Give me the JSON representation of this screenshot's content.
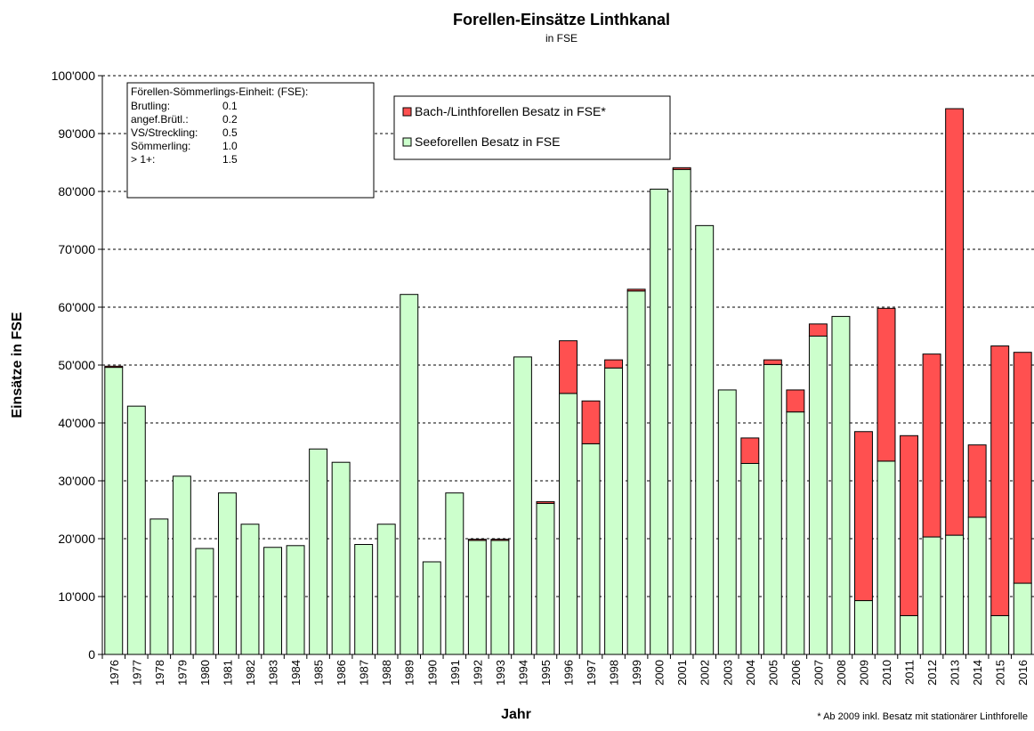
{
  "chart_data": {
    "type": "stacked-bar",
    "title": "Forellen-Einsätze Linthkanal",
    "subtitle": "in FSE",
    "y_label": "Einsätze in FSE",
    "x_label": "Jahr",
    "footnote": "* Ab 2009 inkl. Besatz mit stationärer Linthforelle",
    "categories": [
      "1976",
      "1977",
      "1978",
      "1979",
      "1980",
      "1981",
      "1982",
      "1983",
      "1984",
      "1985",
      "1986",
      "1987",
      "1988",
      "1989",
      "1990",
      "1991",
      "1992",
      "1993",
      "1994",
      "1995",
      "1996",
      "1997",
      "1998",
      "1999",
      "2000",
      "2001",
      "2002",
      "2003",
      "2004",
      "2005",
      "2006",
      "2007",
      "2008",
      "2009",
      "2010",
      "2011",
      "2012",
      "2013",
      "2014",
      "2015",
      "2016"
    ],
    "series": [
      {
        "name": "Seeforellen Besatz in FSE",
        "color": "#ccffcc",
        "values": [
          49600,
          42900,
          23400,
          30800,
          18300,
          27900,
          22500,
          18500,
          18800,
          35500,
          33200,
          19000,
          22500,
          62200,
          16000,
          27900,
          19700,
          19700,
          51400,
          26100,
          45100,
          36400,
          49500,
          62800,
          80400,
          83800,
          74100,
          45700,
          33000,
          50100,
          41900,
          55000,
          58400,
          9300,
          33400,
          6700,
          20300,
          20600,
          23700,
          6700,
          12300
        ]
      },
      {
        "name": "Bach-/Linthforellen Besatz in FSE*",
        "color": "#ff5050",
        "values": [
          200,
          0,
          0,
          0,
          0,
          0,
          0,
          0,
          0,
          0,
          0,
          0,
          0,
          0,
          0,
          0,
          200,
          200,
          0,
          300,
          9100,
          7400,
          1400,
          300,
          0,
          300,
          0,
          0,
          4400,
          800,
          3800,
          2100,
          0,
          29200,
          26400,
          31100,
          31600,
          73700,
          12500,
          46600,
          39900
        ]
      }
    ],
    "ylim": [
      0,
      100000
    ],
    "yticks": [
      0,
      {
        "value": 10000,
        "label": "10'000"
      },
      {
        "value": 20000,
        "label": "20'000"
      },
      {
        "value": 30000,
        "label": "30'000"
      },
      {
        "value": 40000,
        "label": "40'000"
      },
      {
        "value": 50000,
        "label": "50'000"
      },
      {
        "value": 60000,
        "label": "60'000"
      },
      {
        "value": 70000,
        "label": "70'000"
      },
      {
        "value": 80000,
        "label": "80'000"
      },
      {
        "value": 90000,
        "label": "90'000"
      },
      {
        "value": 100000,
        "label": "100'000"
      }
    ],
    "grid": true
  },
  "fse_box": {
    "title": "Förellen-Sömmerlings-Einheit: (FSE):",
    "rows": [
      [
        "Brutling:",
        "0.1"
      ],
      [
        "angef.Brütl.:",
        "0.2"
      ],
      [
        "VS/Streckling:",
        "0.5"
      ],
      [
        "Sömmerling:",
        "1.0"
      ],
      [
        "> 1+:",
        "1.5"
      ]
    ]
  }
}
